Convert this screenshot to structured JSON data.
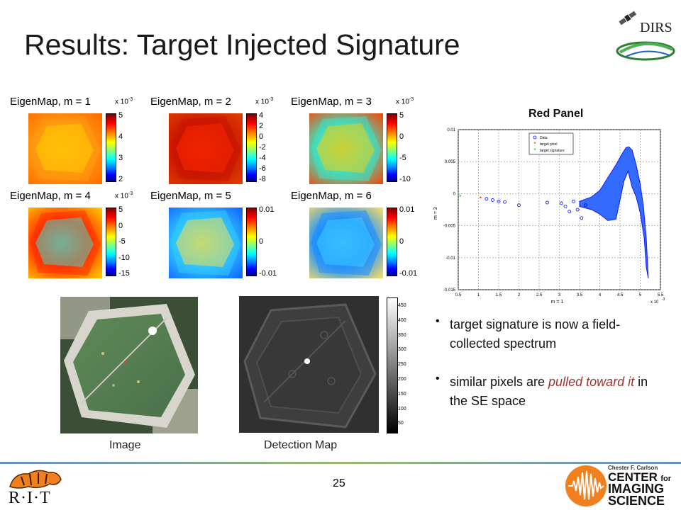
{
  "slide": {
    "title": "Results: Target Injected Signature",
    "page_number": "25"
  },
  "logos": {
    "dirs": "DIRS",
    "rit": "R·I·T",
    "cis_top": "Chester F. Carlson",
    "cis_center": "CENTER",
    "cis_for": "for",
    "cis_imaging": "IMAGING",
    "cis_science": "SCIENCE"
  },
  "eigenmaps": [
    {
      "label": "EigenMap, m = 1",
      "mult": "x 10",
      "exp": "-3",
      "ticks": [
        "5",
        "4",
        "3",
        "2"
      ],
      "tone": "orange"
    },
    {
      "label": "EigenMap, m = 2",
      "mult": "x 10",
      "exp": "-3",
      "ticks": [
        "4",
        "2",
        "0",
        "-2",
        "-4",
        "-6",
        "-8"
      ],
      "tone": "red"
    },
    {
      "label": "EigenMap, m = 3",
      "mult": "x 10",
      "exp": "-3",
      "ticks": [
        "5",
        "0",
        "-5",
        "-10"
      ],
      "tone": "cyan"
    },
    {
      "label": "EigenMap, m = 4",
      "mult": "x 10",
      "exp": "-3",
      "ticks": [
        "5",
        "0",
        "-5",
        "-10",
        "-15"
      ],
      "tone": "redcyan"
    },
    {
      "label": "EigenMap, m = 5",
      "mult": "",
      "exp": "",
      "ticks": [
        "0.01",
        "0",
        "-0.01"
      ],
      "tone": "cyanyellow"
    },
    {
      "label": "EigenMap, m = 6",
      "mult": "",
      "exp": "",
      "ticks": [
        "0.01",
        "0",
        "-0.01"
      ],
      "tone": "blue"
    }
  ],
  "images": {
    "image_caption": "Image",
    "detection_caption": "Detection Map",
    "detection_ticks": [
      "450",
      "400",
      "350",
      "300",
      "250",
      "200",
      "150",
      "100",
      "50"
    ]
  },
  "red_panel": {
    "title": "Red Panel"
  },
  "chart_data": {
    "type": "scatter",
    "title": "",
    "xlabel": "m = 1",
    "ylabel": "m = 3",
    "x_multiplier": "x 10",
    "x_multiplier_exp": "-3",
    "xlim": [
      0.5,
      5.5
    ],
    "ylim": [
      -0.015,
      0.01
    ],
    "x_ticks": [
      "0.5",
      "1",
      "1.5",
      "2",
      "2.5",
      "3",
      "3.5",
      "4",
      "4.5",
      "5",
      "5.5"
    ],
    "y_ticks": [
      "0.01",
      "0.005",
      "0",
      "-0.005",
      "-0.01",
      "-0.015"
    ],
    "grid": true,
    "legend_position": "top-left",
    "series": [
      {
        "name": "Data",
        "color": "#0000ff",
        "marker": "o",
        "x": [
          1.2,
          1.35,
          1.5,
          1.65,
          2.0,
          2.7,
          3.05,
          3.15,
          3.25,
          3.35,
          3.45,
          3.55,
          3.65
        ],
        "y": [
          -0.0008,
          -0.001,
          -0.0012,
          -0.0013,
          -0.0018,
          -0.0014,
          -0.0015,
          -0.002,
          -0.0028,
          -0.0012,
          -0.0025,
          -0.0038,
          -0.0018
        ]
      },
      {
        "name": "target pixel",
        "color": "#ff0000",
        "marker": "*",
        "x": [
          1.05
        ],
        "y": [
          -0.0008
        ]
      },
      {
        "name": "target signature",
        "color": "#00c000",
        "marker": "*",
        "x": [
          0.55
        ],
        "y": [
          -0.0005
        ]
      }
    ],
    "cloud_outline": {
      "x": [
        3.5,
        3.8,
        4.0,
        4.2,
        4.4,
        4.55,
        4.65,
        4.72,
        4.8,
        4.9,
        5.0,
        5.08,
        5.15,
        5.2,
        5.15,
        5.1,
        5.0,
        4.9,
        4.8,
        4.7,
        4.6,
        4.5,
        4.4,
        4.2,
        4.0,
        3.8,
        3.5
      ],
      "y": [
        -0.0012,
        -0.0005,
        0.0005,
        0.0025,
        0.0045,
        0.0062,
        0.0072,
        0.0073,
        0.0068,
        0.0045,
        0.0015,
        -0.002,
        -0.007,
        -0.0132,
        -0.0115,
        -0.007,
        -0.003,
        -0.0005,
        0.001,
        0.0035,
        0.002,
        -0.001,
        -0.004,
        -0.0042,
        -0.0032,
        -0.0025,
        -0.002
      ]
    }
  },
  "bullets": {
    "b1": "target signature is now a field-collected spectrum",
    "b2_pre": "similar pixels are ",
    "b2_accent": "pulled toward it",
    "b2_post": " in the SE space"
  }
}
